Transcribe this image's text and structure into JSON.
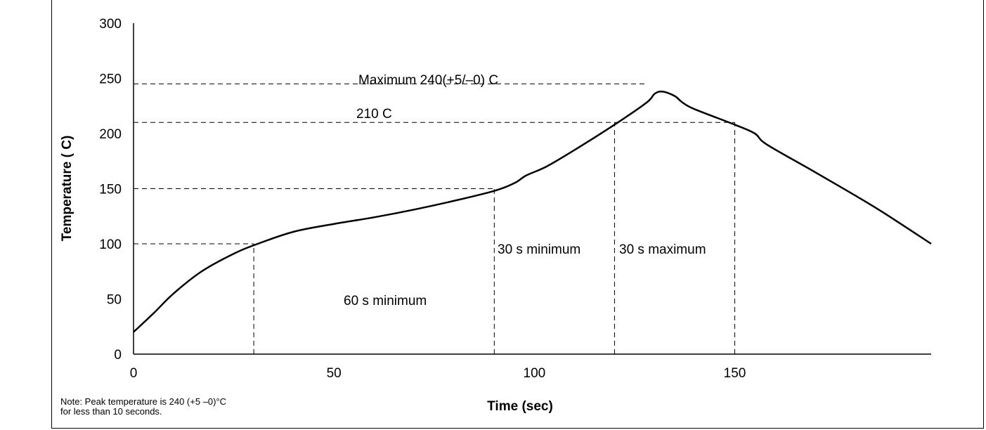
{
  "chart_data": {
    "type": "line",
    "xlabel": "Time  (sec)",
    "ylabel": "Temperature  ( C)",
    "xlim": [
      0,
      199
    ],
    "ylim": [
      0,
      300
    ],
    "xticks": [
      "0",
      "50",
      "100",
      "150"
    ],
    "yticks": [
      "0",
      "50",
      "100",
      "150",
      "200",
      "250",
      "300"
    ],
    "grid": false,
    "series": [
      {
        "x": [
          0,
          5,
          10,
          17,
          25,
          31,
          40,
          50,
          60,
          70,
          80,
          90,
          95,
          98,
          103,
          110,
          120,
          128,
          130,
          132,
          135,
          137,
          140,
          150,
          155,
          158,
          170,
          185,
          199
        ],
        "y": [
          20,
          37,
          55,
          75,
          91,
          100,
          111,
          118,
          124,
          131,
          139,
          148,
          155,
          162,
          170,
          185,
          208,
          228,
          236,
          238,
          234,
          228,
          222,
          208,
          200,
          190,
          165,
          133,
          100
        ]
      }
    ],
    "reference_lines": [
      {
        "axis": "y",
        "value": 245,
        "from_x": 0,
        "to_x": 128
      },
      {
        "axis": "y",
        "value": 210,
        "from_x": 0,
        "to_x": 150
      },
      {
        "axis": "y",
        "value": 150,
        "from_x": 0,
        "to_x": 90
      },
      {
        "axis": "y",
        "value": 100,
        "from_x": 0,
        "to_x": 30
      },
      {
        "axis": "x",
        "value": 30,
        "from_y": 0,
        "to_y": 100
      },
      {
        "axis": "x",
        "value": 90,
        "from_y": 0,
        "to_y": 150
      },
      {
        "axis": "x",
        "value": 120,
        "from_y": 0,
        "to_y": 210
      },
      {
        "axis": "x",
        "value": 150,
        "from_y": 0,
        "to_y": 210
      }
    ],
    "annotations": {
      "max_label": "Maximum 240(+5/–0)  C",
      "line210_label": "210  C",
      "sixty_label": "60 s minimum",
      "thirty_min_label": "30 s minimum",
      "thirty_max_label": "30 s maximum"
    }
  },
  "note": {
    "line1": "Note: Peak temperature is 240 (+5 –0)°C",
    "line2": "for less than  10 seconds."
  }
}
